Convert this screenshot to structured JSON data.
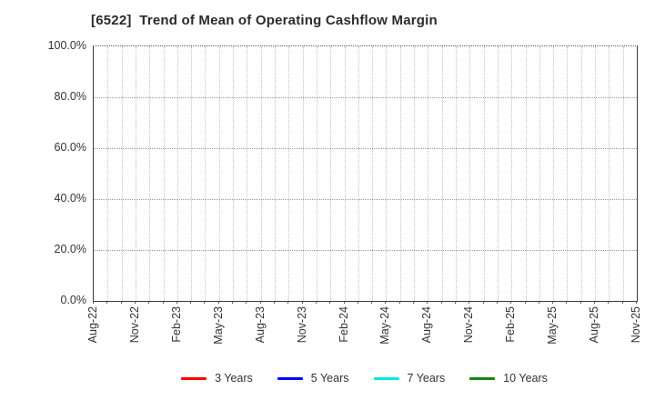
{
  "title": "[6522]  Trend of Mean of Operating Cashflow Margin",
  "chart_data": {
    "type": "line",
    "title": "[6522]  Trend of Mean of Operating Cashflow Margin",
    "x_axis": {
      "range": [
        "Aug-22",
        "Nov-25"
      ],
      "months_total": 40,
      "label_every_n_months": 3,
      "tick_labels": [
        "Aug-22",
        "Nov-22",
        "Feb-23",
        "May-23",
        "Aug-23",
        "Nov-23",
        "Feb-24",
        "May-24",
        "Aug-24",
        "Nov-24",
        "Feb-25",
        "May-25",
        "Aug-25",
        "Nov-25"
      ]
    },
    "y_axis": {
      "unit": "%",
      "ylim": [
        0,
        100
      ],
      "tick_values": [
        0,
        20,
        40,
        60,
        80,
        100
      ],
      "tick_labels": [
        "0.0%",
        "20.0%",
        "40.0%",
        "60.0%",
        "80.0%",
        "100.0%"
      ]
    },
    "grid": true,
    "legend_position": "bottom",
    "series": [
      {
        "name": "3 Years",
        "color": "#ff0000",
        "values": []
      },
      {
        "name": "5 Years",
        "color": "#0000ff",
        "values": []
      },
      {
        "name": "7 Years",
        "color": "#00e8e8",
        "values": []
      },
      {
        "name": "10 Years",
        "color": "#148514",
        "values": []
      }
    ]
  },
  "colors": {
    "background": "#ffffff",
    "frame": "#3a3a3a",
    "vertical_grid": "#c2c2c2",
    "horizontal_grid": "#9a9a9a",
    "text": "#333333",
    "title_text": "#2b2b2b"
  }
}
